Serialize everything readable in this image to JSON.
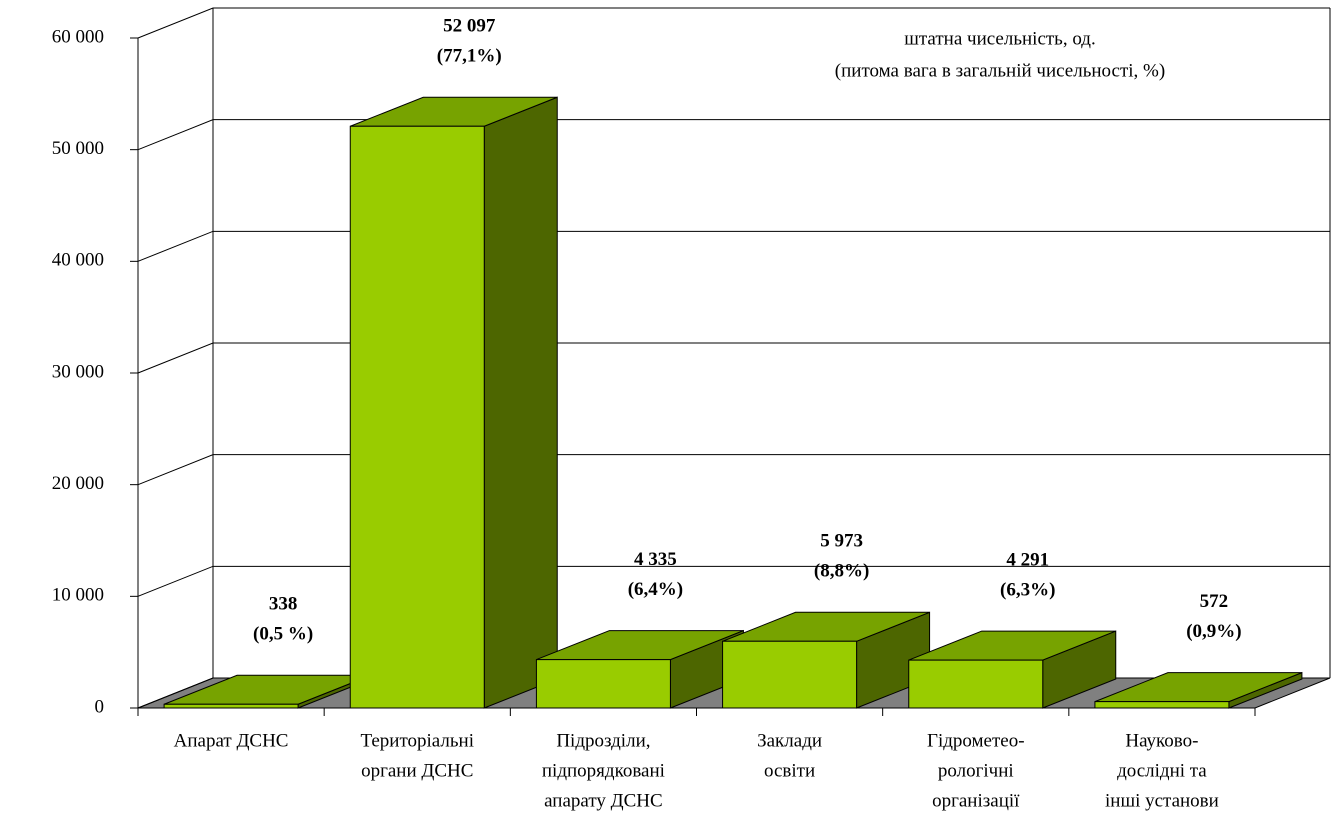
{
  "chart_data": {
    "type": "bar3d",
    "title": "штатна чисельність, од.",
    "subtitle": "(питома вага в загальній чисельності, %)",
    "categories": [
      [
        "Апарат ДСНС"
      ],
      [
        "Територіальні",
        "органи ДСНС"
      ],
      [
        "Підрозділи,",
        "підпорядковані",
        "апарату ДСНС"
      ],
      [
        "Заклади",
        "освіти"
      ],
      [
        "Гідрометео-",
        "рологічні",
        "організації"
      ],
      [
        "Науково-",
        "дослідні та",
        "інші установи"
      ]
    ],
    "values": [
      338,
      52097,
      4335,
      5973,
      4291,
      572
    ],
    "value_labels": [
      [
        "338",
        "(0,5 %)"
      ],
      [
        "52 097",
        "(77,1%)"
      ],
      [
        "4 335",
        "(6,4%)"
      ],
      [
        "5 973",
        "(8,8%)"
      ],
      [
        "4 291",
        "(6,3%)"
      ],
      [
        "572",
        "(0,9%)"
      ]
    ],
    "colors": {
      "front": "#99cc00",
      "top": "#77a300",
      "side": "#4d6600",
      "floor": "#808080"
    },
    "ylim": [
      0,
      60000
    ],
    "yticks": [
      0,
      {
        "value": 10000,
        "label": "10 000"
      },
      {
        "value": 20000,
        "label": "20 000"
      },
      {
        "value": 30000,
        "label": "30 000"
      },
      {
        "value": 40000,
        "label": "40 000"
      },
      {
        "value": 50000,
        "label": "50 000"
      },
      {
        "value": 60000,
        "label": "60 000"
      }
    ],
    "grid": true
  }
}
